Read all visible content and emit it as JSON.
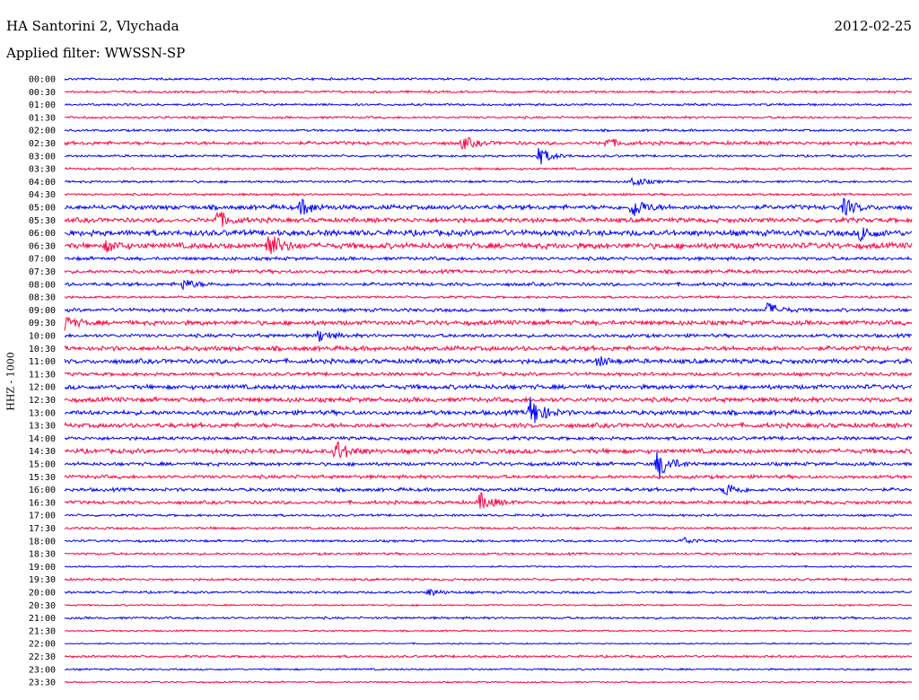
{
  "header": {
    "station": "HA Santorini 2, Vlychada",
    "filter": "Applied filter: WWSSN-SP",
    "date": "2012-02-25"
  },
  "chart_data": {
    "type": "line",
    "title": "HA Santorini 2, Vlychada",
    "subtitle": "Applied filter: WWSSN-SP",
    "ylabel": "HHZ - 1000",
    "xlabel": "",
    "date": "2012-02-25",
    "colors": [
      "#0000ff",
      "#ff0040"
    ],
    "rows": [
      {
        "label": "00:00",
        "level": 1
      },
      {
        "label": "00:30",
        "level": 1
      },
      {
        "label": "01:00",
        "level": 1
      },
      {
        "label": "01:30",
        "level": 1
      },
      {
        "label": "02:00",
        "level": 1
      },
      {
        "label": "02:30",
        "level": 1.5
      },
      {
        "label": "03:00",
        "level": 1
      },
      {
        "label": "03:30",
        "level": 1
      },
      {
        "label": "04:00",
        "level": 1
      },
      {
        "label": "04:30",
        "level": 1
      },
      {
        "label": "05:00",
        "level": 2
      },
      {
        "label": "05:30",
        "level": 2
      },
      {
        "label": "06:00",
        "level": 2.5
      },
      {
        "label": "06:30",
        "level": 2.5
      },
      {
        "label": "07:00",
        "level": 1.5
      },
      {
        "label": "07:30",
        "level": 1.5
      },
      {
        "label": "08:00",
        "level": 1.5
      },
      {
        "label": "08:30",
        "level": 1
      },
      {
        "label": "09:00",
        "level": 1.5
      },
      {
        "label": "09:30",
        "level": 2
      },
      {
        "label": "10:00",
        "level": 1.5
      },
      {
        "label": "10:30",
        "level": 2
      },
      {
        "label": "11:00",
        "level": 2
      },
      {
        "label": "11:30",
        "level": 1.5
      },
      {
        "label": "12:00",
        "level": 2
      },
      {
        "label": "12:30",
        "level": 2
      },
      {
        "label": "13:00",
        "level": 2
      },
      {
        "label": "13:30",
        "level": 2
      },
      {
        "label": "14:00",
        "level": 1.5
      },
      {
        "label": "14:30",
        "level": 2
      },
      {
        "label": "15:00",
        "level": 1.5
      },
      {
        "label": "15:30",
        "level": 1.5
      },
      {
        "label": "16:00",
        "level": 1.5
      },
      {
        "label": "16:30",
        "level": 1.5
      },
      {
        "label": "17:00",
        "level": 1
      },
      {
        "label": "17:30",
        "level": 1
      },
      {
        "label": "18:00",
        "level": 1
      },
      {
        "label": "18:30",
        "level": 1
      },
      {
        "label": "19:00",
        "level": 0.7
      },
      {
        "label": "19:30",
        "level": 1
      },
      {
        "label": "20:00",
        "level": 1
      },
      {
        "label": "20:30",
        "level": 0.7
      },
      {
        "label": "21:00",
        "level": 1
      },
      {
        "label": "21:30",
        "level": 0.7
      },
      {
        "label": "22:00",
        "level": 0.6
      },
      {
        "label": "22:30",
        "level": 1
      },
      {
        "label": "23:00",
        "level": 0.8
      },
      {
        "label": "23:30",
        "level": 0.7
      }
    ],
    "events": [
      {
        "row": "02:30",
        "x": 0.47,
        "amp": 7
      },
      {
        "row": "02:30",
        "x": 0.64,
        "amp": 5
      },
      {
        "row": "03:00",
        "x": 0.56,
        "amp": 10
      },
      {
        "row": "04:00",
        "x": 0.67,
        "amp": 6
      },
      {
        "row": "05:00",
        "x": 0.28,
        "amp": 9
      },
      {
        "row": "05:00",
        "x": 0.67,
        "amp": 12
      },
      {
        "row": "05:00",
        "x": 0.92,
        "amp": 9
      },
      {
        "row": "05:30",
        "x": 0.18,
        "amp": 10
      },
      {
        "row": "06:00",
        "x": 0.94,
        "amp": 8
      },
      {
        "row": "06:30",
        "x": 0.24,
        "amp": 16
      },
      {
        "row": "06:30",
        "x": 0.05,
        "amp": 6
      },
      {
        "row": "08:00",
        "x": 0.14,
        "amp": 6
      },
      {
        "row": "09:00",
        "x": 0.83,
        "amp": 8
      },
      {
        "row": "09:30",
        "x": 0.0,
        "amp": 7
      },
      {
        "row": "10:00",
        "x": 0.3,
        "amp": 7
      },
      {
        "row": "11:00",
        "x": 0.63,
        "amp": 5
      },
      {
        "row": "13:00",
        "x": 0.55,
        "amp": 18
      },
      {
        "row": "14:30",
        "x": 0.32,
        "amp": 12
      },
      {
        "row": "15:00",
        "x": 0.7,
        "amp": 18
      },
      {
        "row": "16:00",
        "x": 0.78,
        "amp": 8
      },
      {
        "row": "16:30",
        "x": 0.49,
        "amp": 10
      },
      {
        "row": "18:00",
        "x": 0.73,
        "amp": 4
      },
      {
        "row": "20:00",
        "x": 0.43,
        "amp": 4
      }
    ]
  }
}
